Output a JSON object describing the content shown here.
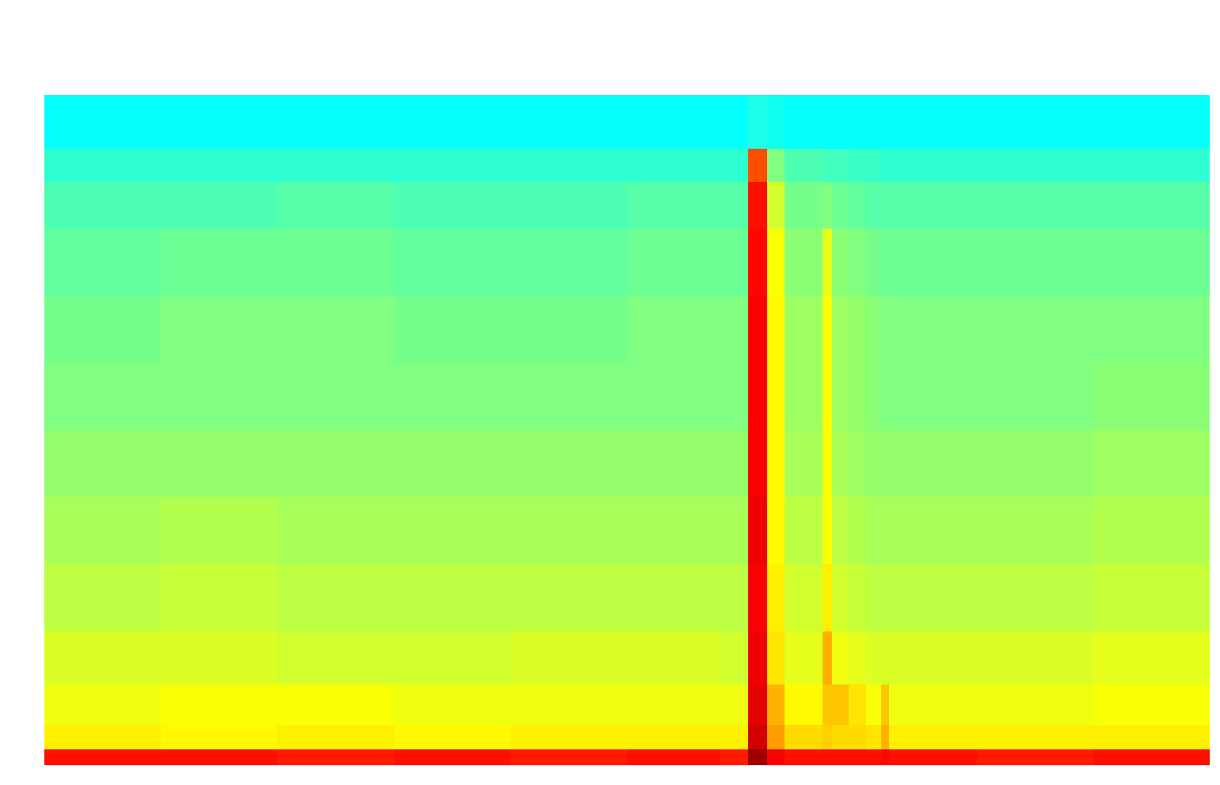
{
  "chart_data": {
    "type": "heatmap",
    "xlim": [
      0,
      100
    ],
    "ylim": [
      0,
      100
    ],
    "tick_labels": false,
    "grid": false,
    "color_range": [
      0,
      100
    ],
    "x_bins": [
      0,
      10,
      20,
      30,
      40,
      50,
      58,
      60.4,
      62,
      63.5,
      66.8,
      67.6,
      69,
      70.5,
      71.8,
      72.5,
      80,
      90,
      100
    ],
    "y_bins": [
      0,
      2.4,
      6,
      12,
      20,
      30,
      40,
      50,
      60,
      70,
      80,
      87,
      92,
      100
    ],
    "values": [
      [
        86,
        86,
        85,
        86,
        85,
        86,
        85,
        97,
        88,
        86,
        86,
        86,
        86,
        86,
        87,
        86,
        85,
        86
      ],
      [
        64,
        63,
        64,
        63,
        64,
        64,
        64,
        92,
        72,
        66,
        67,
        66,
        66,
        65,
        70,
        64,
        64,
        64
      ],
      [
        61,
        62,
        62,
        61,
        61,
        61,
        61,
        90,
        70,
        63,
        68,
        68,
        65,
        62,
        68,
        61,
        61,
        62
      ],
      [
        59,
        59,
        58,
        58,
        59,
        59,
        58,
        89,
        65,
        60,
        70,
        61,
        60,
        59,
        59,
        59,
        59,
        60
      ],
      [
        56,
        57,
        56,
        56,
        56,
        56,
        56,
        88,
        64,
        58,
        64,
        58,
        57,
        56,
        56,
        56,
        56,
        57
      ],
      [
        54,
        55,
        54,
        54,
        54,
        54,
        54,
        89,
        63,
        56,
        62,
        56,
        55,
        54,
        54,
        54,
        54,
        55
      ],
      [
        52,
        52,
        52,
        52,
        52,
        52,
        52,
        88,
        63,
        54,
        62,
        54,
        53,
        52,
        52,
        52,
        52,
        53
      ],
      [
        50,
        50,
        50,
        50,
        50,
        50,
        50,
        88,
        63,
        53,
        62,
        53,
        52,
        51,
        50,
        50,
        50,
        51
      ],
      [
        49,
        50,
        50,
        49,
        49,
        50,
        50,
        88,
        63,
        53,
        62,
        53,
        52,
        51,
        50,
        50,
        50,
        50
      ],
      [
        47,
        48,
        48,
        47,
        47,
        48,
        48,
        87,
        62,
        51,
        60,
        51,
        50,
        49,
        48,
        48,
        48,
        48
      ],
      [
        45,
        45,
        46,
        45,
        45,
        46,
        46,
        86,
        58,
        49,
        50,
        48,
        47,
        46,
        46,
        46,
        46,
        46
      ],
      [
        42,
        42,
        42,
        42,
        42,
        42,
        42,
        80,
        50,
        45,
        44,
        44,
        43,
        43,
        42,
        42,
        42,
        42
      ],
      [
        38,
        38,
        38,
        38,
        38,
        38,
        38,
        40,
        39,
        38,
        38,
        38,
        38,
        38,
        38,
        38,
        38,
        38
      ]
    ]
  }
}
